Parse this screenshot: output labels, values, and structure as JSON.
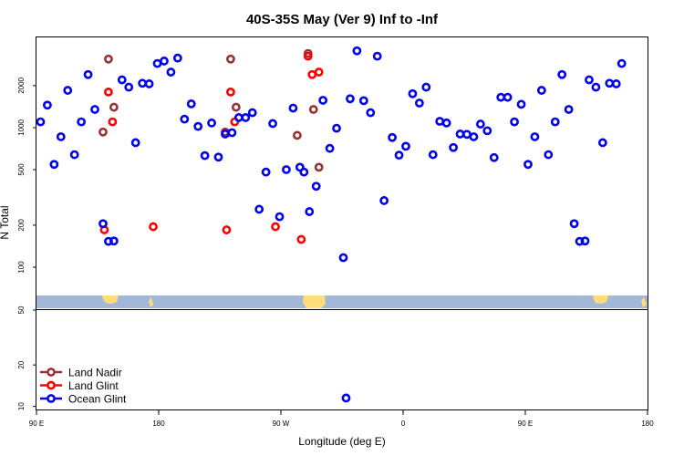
{
  "chart_data": {
    "type": "scatter",
    "title": "40S-35S May (Ver 9)   Inf to -Inf",
    "xlabel": "Longitude (deg E)",
    "ylabel": "N Total",
    "x_domain": [
      90,
      540
    ],
    "x_ticks": [
      {
        "value": 90,
        "label": "90 E"
      },
      {
        "value": 180,
        "label": "180"
      },
      {
        "value": 270,
        "label": "90 W"
      },
      {
        "value": 360,
        "label": "0"
      },
      {
        "value": 450,
        "label": "90 E"
      },
      {
        "value": 540,
        "label": "180"
      }
    ],
    "upper_panel": {
      "scale": "log",
      "ylim": [
        50,
        4500
      ],
      "y_ticks": [
        {
          "value": 100,
          "label": "100"
        },
        {
          "value": 200,
          "label": "200"
        },
        {
          "value": 500,
          "label": "500"
        },
        {
          "value": 1000,
          "label": "1000"
        },
        {
          "value": 2000,
          "label": "2000"
        }
      ]
    },
    "lower_panel": {
      "scale": "log",
      "ylim": [
        9.5,
        50
      ],
      "y_ticks": [
        {
          "value": 10,
          "label": "10"
        },
        {
          "value": 20,
          "label": "20"
        },
        {
          "value": 50,
          "label": "50"
        }
      ]
    },
    "series": [
      {
        "name": "Land Nadir",
        "color": "#993333",
        "points": [
          [
            143,
            3100
          ],
          [
            139,
            930
          ],
          [
            147,
            1400
          ],
          [
            282,
            880
          ],
          [
            290,
            3400
          ],
          [
            294,
            1350
          ],
          [
            298,
            520
          ],
          [
            233,
            3100
          ],
          [
            229,
            930
          ],
          [
            237,
            1400
          ]
        ]
      },
      {
        "name": "Land Glint",
        "color": "#ff0000",
        "points": [
          [
            143,
            1800
          ],
          [
            146,
            1100
          ],
          [
            140,
            185
          ],
          [
            176,
            195
          ],
          [
            290,
            3250
          ],
          [
            293,
            2400
          ],
          [
            298,
            2500
          ],
          [
            285,
            158
          ],
          [
            233,
            1800
          ],
          [
            236,
            1100
          ],
          [
            230,
            185
          ],
          [
            266,
            195
          ]
        ]
      },
      {
        "name": "Ocean Glint",
        "color": "#0000ee",
        "points": [
          [
            93,
            1100
          ],
          [
            98,
            1450
          ],
          [
            103,
            545
          ],
          [
            108,
            860
          ],
          [
            113,
            1850
          ],
          [
            118,
            640
          ],
          [
            123,
            1100
          ],
          [
            128,
            2400
          ],
          [
            133,
            1350
          ],
          [
            139,
            205
          ],
          [
            143,
            153
          ],
          [
            147,
            154
          ],
          [
            153,
            2200
          ],
          [
            158,
            1950
          ],
          [
            163,
            780
          ],
          [
            168,
            2080
          ],
          [
            173,
            2060
          ],
          [
            179,
            2880
          ],
          [
            184,
            3000
          ],
          [
            189,
            2500
          ],
          [
            194,
            3150
          ],
          [
            199,
            1150
          ],
          [
            204,
            1480
          ],
          [
            209,
            1020
          ],
          [
            214,
            630
          ],
          [
            219,
            1080
          ],
          [
            224,
            615
          ],
          [
            229,
            900
          ],
          [
            234,
            920
          ],
          [
            239,
            1180
          ],
          [
            244,
            1180
          ],
          [
            249,
            1280
          ],
          [
            254,
            260
          ],
          [
            259,
            480
          ],
          [
            264,
            1070
          ],
          [
            269,
            230
          ],
          [
            274,
            500
          ],
          [
            279,
            1380
          ],
          [
            284,
            520
          ],
          [
            287,
            480
          ],
          [
            291,
            250
          ],
          [
            296,
            380
          ],
          [
            301,
            1570
          ],
          [
            306,
            710
          ],
          [
            311,
            990
          ],
          [
            316,
            117
          ],
          [
            321,
            1610
          ],
          [
            326,
            3550
          ],
          [
            331,
            1560
          ],
          [
            336,
            1280
          ],
          [
            341,
            3250
          ],
          [
            346,
            300
          ],
          [
            352,
            850
          ],
          [
            357,
            635
          ],
          [
            362,
            735
          ],
          [
            367,
            1750
          ],
          [
            372,
            1500
          ],
          [
            377,
            1950
          ],
          [
            382,
            640
          ],
          [
            387,
            1110
          ],
          [
            392,
            1080
          ],
          [
            397,
            720
          ],
          [
            402,
            900
          ],
          [
            407,
            895
          ],
          [
            412,
            860
          ],
          [
            417,
            1060
          ],
          [
            422,
            950
          ],
          [
            427,
            610
          ],
          [
            432,
            1650
          ],
          [
            437,
            1650
          ],
          [
            442,
            1100
          ],
          [
            447,
            1470
          ],
          [
            452,
            545
          ],
          [
            457,
            860
          ],
          [
            462,
            1850
          ],
          [
            467,
            640
          ],
          [
            472,
            1100
          ],
          [
            477,
            2400
          ],
          [
            482,
            1350
          ],
          [
            486,
            205
          ],
          [
            490,
            153
          ],
          [
            494,
            154
          ],
          [
            497,
            2200
          ],
          [
            502,
            1950
          ],
          [
            507,
            780
          ],
          [
            512,
            2080
          ],
          [
            517,
            2060
          ],
          [
            521,
            2880
          ],
          [
            318,
            11.5
          ]
        ]
      }
    ]
  }
}
